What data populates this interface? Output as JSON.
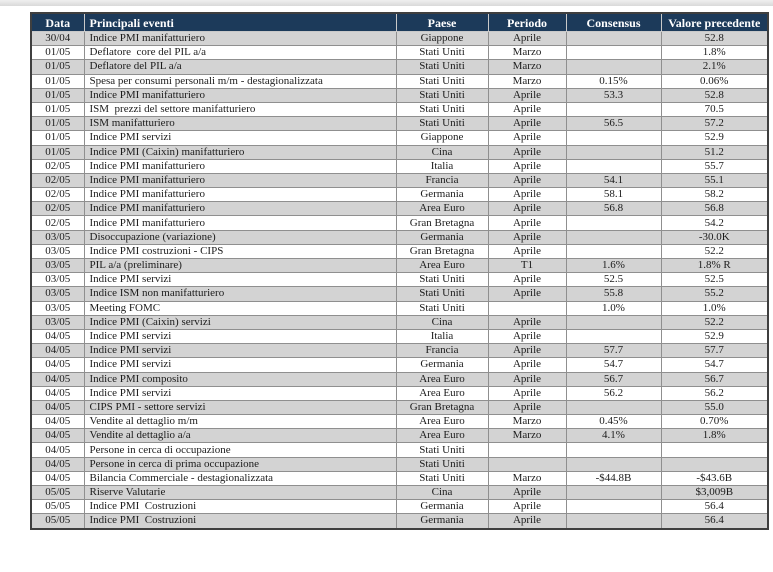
{
  "page": {
    "background": "#ffffff",
    "top_strip_color": "#e3e3e3"
  },
  "table": {
    "colors": {
      "header_bg": "#1c3a5a",
      "header_text": "#ffffff",
      "row_alt_bg": "#d3d3d3",
      "row_bg": "#ffffff",
      "grid": "#8f8f8f",
      "outer_border": "#3f3f3f",
      "text": "#1c1c1c"
    },
    "columns": [
      {
        "key": "data",
        "label": "Data",
        "align": "center"
      },
      {
        "key": "evento",
        "label": "Principali eventi",
        "align": "left"
      },
      {
        "key": "paese",
        "label": "Paese",
        "align": "center"
      },
      {
        "key": "periodo",
        "label": "Periodo",
        "align": "center"
      },
      {
        "key": "consensus",
        "label": "Consensus",
        "align": "center"
      },
      {
        "key": "precedente",
        "label": "Valore precedente",
        "align": "center"
      }
    ],
    "rows": [
      [
        "30/04",
        "Indice PMI manifatturiero",
        "Giappone",
        "Aprile",
        "",
        "52.8"
      ],
      [
        "01/05",
        "Deflatore  core del PIL a/a",
        "Stati Uniti",
        "Marzo",
        "",
        "1.8%"
      ],
      [
        "01/05",
        "Deflatore del PIL a/a",
        "Stati Uniti",
        "Marzo",
        "",
        "2.1%"
      ],
      [
        "01/05",
        "Spesa per consumi personali m/m - destagionalizzata",
        "Stati Uniti",
        "Marzo",
        "0.15%",
        "0.06%"
      ],
      [
        "01/05",
        "Indice PMI manifatturiero",
        "Stati Uniti",
        "Aprile",
        "53.3",
        "52.8"
      ],
      [
        "01/05",
        "ISM  prezzi del settore manifatturiero",
        "Stati Uniti",
        "Aprile",
        "",
        "70.5"
      ],
      [
        "01/05",
        "ISM manifatturiero",
        "Stati Uniti",
        "Aprile",
        "56.5",
        "57.2"
      ],
      [
        "01/05",
        "Indice PMI servizi",
        "Giappone",
        "Aprile",
        "",
        "52.9"
      ],
      [
        "01/05",
        "Indice PMI (Caixin) manifatturiero",
        "Cina",
        "Aprile",
        "",
        "51.2"
      ],
      [
        "02/05",
        "Indice PMI manifatturiero",
        "Italia",
        "Aprile",
        "",
        "55.7"
      ],
      [
        "02/05",
        "Indice PMI manifatturiero",
        "Francia",
        "Aprile",
        "54.1",
        "55.1"
      ],
      [
        "02/05",
        "Indice PMI manifatturiero",
        "Germania",
        "Aprile",
        "58.1",
        "58.2"
      ],
      [
        "02/05",
        "Indice PMI manifatturiero",
        "Area Euro",
        "Aprile",
        "56.8",
        "56.8"
      ],
      [
        "02/05",
        "Indice PMI manifatturiero",
        "Gran Bretagna",
        "Aprile",
        "",
        "54.2"
      ],
      [
        "03/05",
        "Disoccupazione (variazione)",
        "Germania",
        "Aprile",
        "",
        "-30.0K"
      ],
      [
        "03/05",
        "Indice PMI costruzioni - CIPS",
        "Gran Bretagna",
        "Aprile",
        "",
        "52.2"
      ],
      [
        "03/05",
        "PIL a/a (preliminare)",
        "Area Euro",
        "T1",
        "1.6%",
        "1.8% R"
      ],
      [
        "03/05",
        "Indice PMI servizi",
        "Stati Uniti",
        "Aprile",
        "52.5",
        "52.5"
      ],
      [
        "03/05",
        "Indice ISM non manifatturiero",
        "Stati Uniti",
        "Aprile",
        "55.8",
        "55.2"
      ],
      [
        "03/05",
        "Meeting FOMC",
        "Stati Uniti",
        "",
        "1.0%",
        "1.0%"
      ],
      [
        "03/05",
        "Indice PMI (Caixin) servizi",
        "Cina",
        "Aprile",
        "",
        "52.2"
      ],
      [
        "04/05",
        "Indice PMI servizi",
        "Italia",
        "Aprile",
        "",
        "52.9"
      ],
      [
        "04/05",
        "Indice PMI servizi",
        "Francia",
        "Aprile",
        "57.7",
        "57.7"
      ],
      [
        "04/05",
        "Indice PMI servizi",
        "Germania",
        "Aprile",
        "54.7",
        "54.7"
      ],
      [
        "04/05",
        "Indice PMI composito",
        "Area Euro",
        "Aprile",
        "56.7",
        "56.7"
      ],
      [
        "04/05",
        "Indice PMI servizi",
        "Area Euro",
        "Aprile",
        "56.2",
        "56.2"
      ],
      [
        "04/05",
        "CIPS PMI - settore servizi",
        "Gran Bretagna",
        "Aprile",
        "",
        "55.0"
      ],
      [
        "04/05",
        "Vendite al dettaglio m/m",
        "Area Euro",
        "Marzo",
        "0.45%",
        "0.70%"
      ],
      [
        "04/05",
        "Vendite al dettaglio a/a",
        "Area Euro",
        "Marzo",
        "4.1%",
        "1.8%"
      ],
      [
        "04/05",
        "Persone in cerca di occupazione",
        "Stati Uniti",
        "",
        "",
        ""
      ],
      [
        "04/05",
        "Persone in cerca di prima occupazione",
        "Stati Uniti",
        "",
        "",
        ""
      ],
      [
        "04/05",
        "Bilancia Commerciale - destagionalizzata",
        "Stati Uniti",
        "Marzo",
        "-$44.8B",
        "-$43.6B"
      ],
      [
        "05/05",
        "Riserve Valutarie",
        "Cina",
        "Aprile",
        "",
        "$3,009B"
      ],
      [
        "05/05",
        "Indice PMI  Costruzioni",
        "Germania",
        "Aprile",
        "",
        "56.4"
      ],
      [
        "05/05",
        "Indice PMI  Costruzioni",
        "Germania",
        "Aprile",
        "",
        "56.4"
      ]
    ]
  }
}
